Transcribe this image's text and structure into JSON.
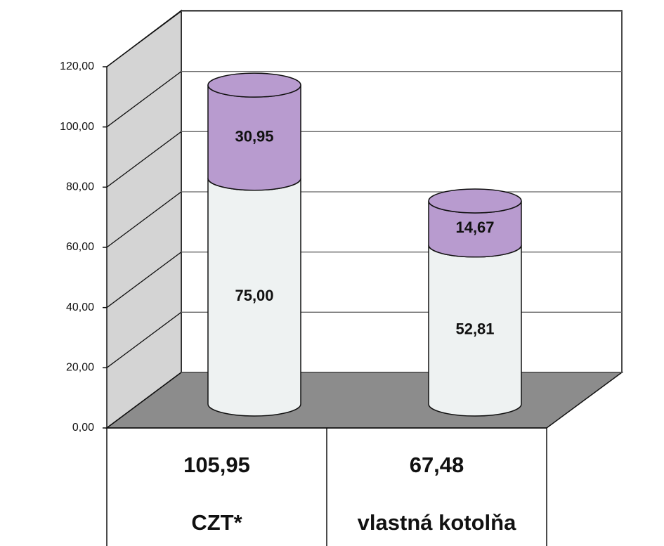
{
  "chart_data": {
    "type": "cylinder-stacked",
    "categories": [
      "CZT*",
      "vlastná kotolňa"
    ],
    "totals": {
      "values": [
        105.95,
        67.48
      ],
      "value_labels": [
        "105,95",
        "67,48"
      ]
    },
    "series": [
      {
        "color": "#eef2f2",
        "values": [
          75.0,
          52.81
        ],
        "value_labels": [
          "75,00",
          "52,81"
        ]
      },
      {
        "color": "#b89bcf",
        "values": [
          30.95,
          14.67
        ],
        "value_labels": [
          "30,95",
          "14,67"
        ]
      }
    ],
    "ylim": [
      0,
      120
    ],
    "yticks": [
      {
        "value": 0,
        "label": "0,00"
      },
      {
        "value": 20,
        "label": "20,00"
      },
      {
        "value": 40,
        "label": "40,00"
      },
      {
        "value": 60,
        "label": "60,00"
      },
      {
        "value": 80,
        "label": "80,00"
      },
      {
        "value": 100,
        "label": "100,00"
      },
      {
        "value": 120,
        "label": "120,00"
      }
    ],
    "grid": true
  }
}
